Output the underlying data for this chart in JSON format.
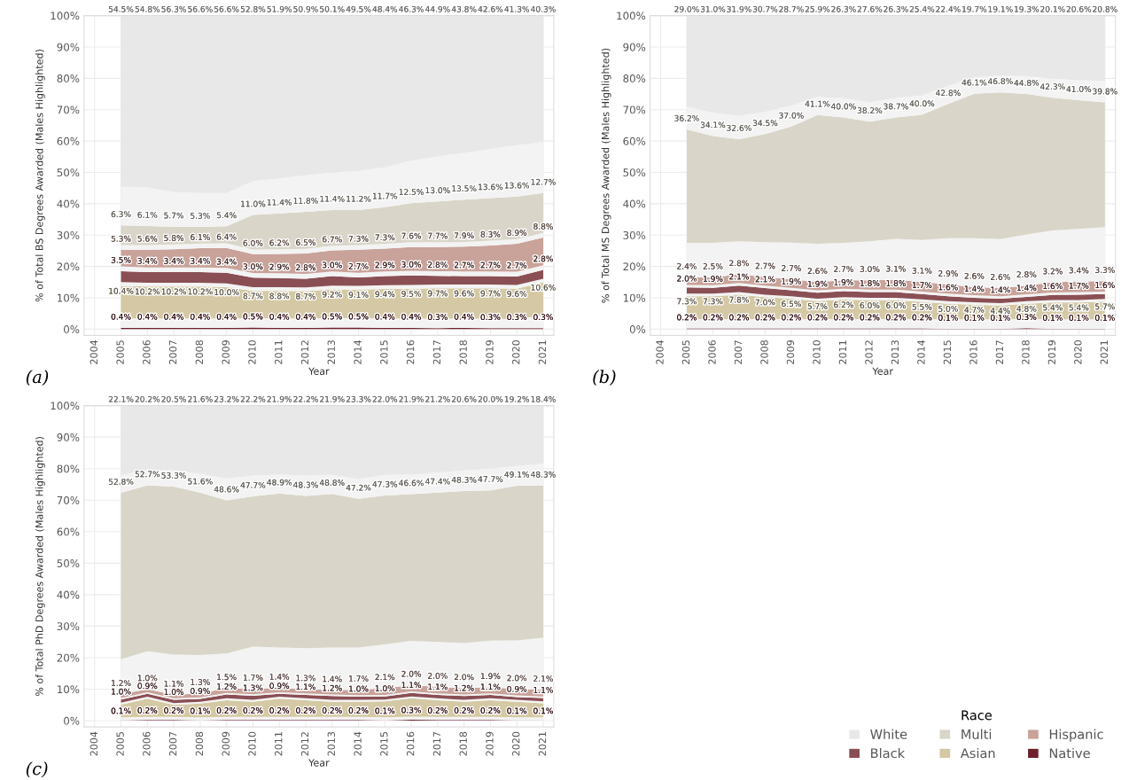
{
  "chart_data": [
    {
      "type": "area",
      "stacked": true,
      "grid": true,
      "ylabel": "% of Total BS Degrees Awarded (Males Highlighted)",
      "xlabel": "Year",
      "x": [
        2005,
        2006,
        2007,
        2008,
        2009,
        2010,
        2011,
        2012,
        2013,
        2014,
        2015,
        2016,
        2017,
        2018,
        2019,
        2020,
        2021
      ],
      "xlim": [
        2003.6,
        2021.4
      ],
      "xticks": [
        2004,
        2005,
        2006,
        2007,
        2008,
        2009,
        2010,
        2011,
        2012,
        2013,
        2014,
        2015,
        2016,
        2017,
        2018,
        2019,
        2020,
        2021
      ],
      "ylim": [
        -2,
        100
      ],
      "yticks": [
        {
          "value": 0,
          "label": "0%"
        },
        {
          "value": 10,
          "label": "10%"
        },
        {
          "value": 20,
          "label": "20%"
        },
        {
          "value": 30,
          "label": "30%"
        },
        {
          "value": 40,
          "label": "40%"
        },
        {
          "value": 50,
          "label": "50%"
        },
        {
          "value": 60,
          "label": "60%"
        },
        {
          "value": 70,
          "label": "70%"
        },
        {
          "value": 80,
          "label": "80%"
        },
        {
          "value": 90,
          "label": "90%"
        },
        {
          "value": 100,
          "label": "100%"
        }
      ],
      "annotations": [
        "(a)"
      ],
      "series": [
        {
          "color": "#6d1f2c",
          "values": [
            0.4,
            0.4,
            0.4,
            0.4,
            0.4,
            0.5,
            0.4,
            0.4,
            0.5,
            0.5,
            0.4,
            0.4,
            0.3,
            0.4,
            0.3,
            0.3,
            0.3
          ],
          "value_labels": [
            "0.4%",
            "0.4%",
            "0.4%",
            "0.4%",
            "0.4%",
            "0.5%",
            "0.4%",
            "0.4%",
            "0.5%",
            "0.5%",
            "0.4%",
            "0.4%",
            "0.3%",
            "0.4%",
            "0.3%",
            "0.3%",
            "0.3%"
          ]
        },
        {
          "color": "#f3f3f3",
          "values": [
            3.0,
            3.0,
            3.0,
            3.0,
            3.0,
            3.0,
            3.0,
            3.0,
            3.0,
            3.0,
            3.0,
            3.0,
            3.0,
            3.0,
            3.0,
            3.0,
            4.0
          ]
        },
        {
          "color": "#d4c9a4",
          "values": [
            10.4,
            10.2,
            10.2,
            10.2,
            10.0,
            8.7,
            8.8,
            8.7,
            9.2,
            9.1,
            9.4,
            9.5,
            9.7,
            9.6,
            9.7,
            9.6,
            10.6
          ],
          "value_labels": [
            "10.4%",
            "10.2%",
            "10.2%",
            "10.2%",
            "10.0%",
            "8.7%",
            "8.8%",
            "8.7%",
            "9.2%",
            "9.1%",
            "9.4%",
            "9.5%",
            "9.7%",
            "9.6%",
            "9.7%",
            "9.6%",
            "10.6%"
          ]
        },
        {
          "color": "#f3f3f3",
          "values": [
            1.2,
            1.2,
            1.2,
            1.2,
            1.2,
            1.2,
            1.2,
            1.2,
            1.2,
            1.2,
            1.2,
            1.2,
            1.2,
            1.2,
            1.2,
            1.2,
            1.2
          ]
        },
        {
          "color": "#8a4f54",
          "values": [
            3.5,
            3.4,
            3.4,
            3.4,
            3.4,
            3.0,
            2.9,
            2.8,
            3.0,
            2.7,
            2.9,
            3.0,
            2.8,
            2.7,
            2.7,
            2.7,
            2.8
          ],
          "value_labels": [
            "3.5%",
            "3.4%",
            "3.4%",
            "3.4%",
            "3.4%",
            "3.0%",
            "2.9%",
            "2.8%",
            "3.0%",
            "2.7%",
            "2.9%",
            "3.0%",
            "2.8%",
            "2.7%",
            "2.7%",
            "2.7%",
            "2.8%"
          ]
        },
        {
          "color": "#f3f3f3",
          "values": [
            1.5,
            1.5,
            1.5,
            1.5,
            1.5,
            1.5,
            1.5,
            1.5,
            1.5,
            1.5,
            1.5,
            1.5,
            1.5,
            1.5,
            1.5,
            1.5,
            1.5
          ]
        },
        {
          "color": "#c9a29a",
          "values": [
            5.3,
            5.6,
            5.8,
            6.1,
            6.4,
            6.0,
            6.2,
            6.5,
            6.7,
            7.3,
            7.3,
            7.6,
            7.7,
            7.9,
            8.3,
            8.9,
            8.8
          ],
          "value_labels": [
            "5.3%",
            "5.6%",
            "5.8%",
            "6.1%",
            "6.4%",
            "6.0%",
            "6.2%",
            "6.5%",
            "6.7%",
            "7.3%",
            "7.3%",
            "7.6%",
            "7.7%",
            "7.9%",
            "8.3%",
            "8.9%",
            "8.8%"
          ]
        },
        {
          "color": "#f3f3f3",
          "values": [
            1.5,
            1.5,
            1.5,
            1.5,
            1.5,
            1.5,
            1.5,
            1.5,
            1.5,
            1.5,
            1.5,
            1.5,
            1.5,
            1.5,
            1.5,
            1.5,
            1.5
          ]
        },
        {
          "color": "#d9d6c9",
          "values": [
            6.3,
            6.1,
            5.7,
            5.3,
            5.4,
            11.0,
            11.4,
            11.8,
            11.4,
            11.2,
            11.7,
            12.5,
            13.0,
            13.5,
            13.6,
            13.6,
            12.7
          ],
          "value_labels": [
            "6.3%",
            "6.1%",
            "5.7%",
            "5.3%",
            "5.4%",
            "11.0%",
            "11.4%",
            "11.8%",
            "11.4%",
            "11.2%",
            "11.7%",
            "12.5%",
            "13.0%",
            "13.5%",
            "13.6%",
            "13.6%",
            "12.7%"
          ]
        },
        {
          "color": "#f3f3f3",
          "values": [
            12.4,
            12.3,
            11.0,
            10.8,
            10.6,
            10.8,
            11.2,
            11.7,
            11.9,
            12.5,
            12.7,
            13.5,
            14.4,
            14.9,
            15.6,
            16.4,
            16.3
          ]
        },
        {
          "color": "#e8e8e8",
          "values": [
            54.5,
            54.8,
            56.3,
            56.6,
            56.6,
            52.8,
            51.9,
            50.9,
            50.1,
            49.5,
            48.4,
            46.3,
            44.9,
            43.8,
            42.6,
            41.3,
            40.3
          ],
          "value_labels": [
            "54.5%",
            "54.8%",
            "56.3%",
            "56.6%",
            "56.6%",
            "52.8%",
            "51.9%",
            "50.9%",
            "50.1%",
            "49.5%",
            "48.4%",
            "46.3%",
            "44.9%",
            "43.8%",
            "42.6%",
            "41.3%",
            "40.3%"
          ]
        }
      ]
    },
    {
      "type": "area",
      "stacked": true,
      "grid": true,
      "ylabel": "% of Total MS Degrees Awarded (Males Highlighted)",
      "xlabel": "Year",
      "x": [
        2005,
        2006,
        2007,
        2008,
        2009,
        2010,
        2011,
        2012,
        2013,
        2014,
        2015,
        2016,
        2017,
        2018,
        2019,
        2020,
        2021
      ],
      "xlim": [
        2003.6,
        2021.4
      ],
      "xticks": [
        2004,
        2005,
        2006,
        2007,
        2008,
        2009,
        2010,
        2011,
        2012,
        2013,
        2014,
        2015,
        2016,
        2017,
        2018,
        2019,
        2020,
        2021
      ],
      "ylim": [
        -2,
        100
      ],
      "yticks": [
        {
          "value": 0,
          "label": "0%"
        },
        {
          "value": 10,
          "label": "10%"
        },
        {
          "value": 20,
          "label": "20%"
        },
        {
          "value": 30,
          "label": "30%"
        },
        {
          "value": 40,
          "label": "40%"
        },
        {
          "value": 50,
          "label": "50%"
        },
        {
          "value": 60,
          "label": "60%"
        },
        {
          "value": 70,
          "label": "70%"
        },
        {
          "value": 80,
          "label": "80%"
        },
        {
          "value": 90,
          "label": "90%"
        },
        {
          "value": 100,
          "label": "100%"
        }
      ],
      "annotations": [
        "(b)"
      ],
      "series": [
        {
          "color": "#6d1f2c",
          "values": [
            0.2,
            0.2,
            0.2,
            0.2,
            0.2,
            0.2,
            0.2,
            0.2,
            0.2,
            0.2,
            0.1,
            0.1,
            0.1,
            0.3,
            0.1,
            0.1,
            0.1
          ],
          "value_labels": [
            "0.2%",
            "0.2%",
            "0.2%",
            "0.2%",
            "0.2%",
            "0.2%",
            "0.2%",
            "0.2%",
            "0.2%",
            "0.2%",
            "0.1%",
            "0.1%",
            "0.1%",
            "0.3%",
            "0.1%",
            "0.1%",
            "0.1%"
          ]
        },
        {
          "color": "#f3f3f3",
          "values": [
            3.0,
            3.0,
            3.0,
            3.0,
            3.0,
            3.0,
            3.0,
            3.0,
            3.0,
            3.0,
            3.0,
            3.0,
            3.0,
            3.0,
            3.0,
            3.0,
            3.0
          ]
        },
        {
          "color": "#d4c9a4",
          "values": [
            7.3,
            7.3,
            7.8,
            7.0,
            6.5,
            5.7,
            6.2,
            6.0,
            6.0,
            5.5,
            5.0,
            4.7,
            4.4,
            4.8,
            5.4,
            5.4,
            5.7
          ],
          "value_labels": [
            "7.3%",
            "7.3%",
            "7.8%",
            "7.0%",
            "6.5%",
            "5.7%",
            "6.2%",
            "6.0%",
            "6.0%",
            "5.5%",
            "5.0%",
            "4.7%",
            "4.4%",
            "4.8%",
            "5.4%",
            "5.4%",
            "5.7%"
          ]
        },
        {
          "color": "#f3f3f3",
          "values": [
            0.8,
            0.8,
            0.8,
            0.8,
            0.8,
            0.8,
            0.8,
            0.8,
            0.8,
            0.8,
            0.8,
            0.8,
            0.8,
            0.8,
            0.8,
            0.8,
            0.8
          ]
        },
        {
          "color": "#8a4f54",
          "values": [
            2.0,
            1.9,
            2.1,
            2.1,
            1.9,
            1.9,
            1.9,
            1.8,
            1.8,
            1.7,
            1.6,
            1.4,
            1.4,
            1.4,
            1.6,
            1.7,
            1.6
          ],
          "value_labels": [
            "2.0%",
            "1.9%",
            "2.1%",
            "2.1%",
            "1.9%",
            "1.9%",
            "1.9%",
            "1.8%",
            "1.8%",
            "1.7%",
            "1.6%",
            "1.4%",
            "1.4%",
            "1.4%",
            "1.6%",
            "1.7%",
            "1.6%"
          ]
        },
        {
          "color": "#f3f3f3",
          "values": [
            0.8,
            0.8,
            0.8,
            0.8,
            0.8,
            0.8,
            0.8,
            0.8,
            0.8,
            0.8,
            0.8,
            0.8,
            0.8,
            0.8,
            0.8,
            0.8,
            0.8
          ]
        },
        {
          "color": "#c9a29a",
          "values": [
            2.4,
            2.5,
            2.8,
            2.7,
            2.7,
            2.6,
            2.7,
            3.0,
            3.1,
            3.1,
            2.9,
            2.6,
            2.6,
            2.8,
            3.2,
            3.4,
            3.3
          ],
          "value_labels": [
            "2.4%",
            "2.5%",
            "2.8%",
            "2.7%",
            "2.7%",
            "2.6%",
            "2.7%",
            "3.0%",
            "3.1%",
            "3.1%",
            "2.9%",
            "2.6%",
            "2.6%",
            "2.8%",
            "3.2%",
            "3.4%",
            "3.3%"
          ]
        },
        {
          "color": "#f3f3f3",
          "values": [
            11.0,
            11.0,
            10.5,
            11.1,
            11.7,
            12.2,
            11.9,
            12.4,
            13.1,
            13.3,
            14.8,
            15.6,
            15.6,
            16.3,
            16.6,
            16.8,
            17.2
          ]
        },
        {
          "color": "#d9d6c9",
          "values": [
            36.2,
            34.1,
            32.6,
            34.5,
            37.0,
            41.1,
            40.0,
            38.2,
            38.7,
            40.0,
            42.8,
            46.1,
            46.8,
            44.8,
            42.3,
            41.0,
            39.8
          ],
          "value_labels": [
            "36.2%",
            "34.1%",
            "32.6%",
            "34.5%",
            "37.0%",
            "41.1%",
            "40.0%",
            "38.2%",
            "38.7%",
            "40.0%",
            "42.8%",
            "46.1%",
            "46.8%",
            "44.8%",
            "42.3%",
            "41.0%",
            "39.8%"
          ]
        },
        {
          "color": "#f3f3f3",
          "values": [
            7.3,
            7.4,
            7.5,
            7.1,
            6.7,
            5.8,
            6.2,
            6.2,
            6.2,
            6.2,
            5.8,
            5.2,
            5.4,
            5.7,
            6.1,
            6.4,
            6.9
          ]
        },
        {
          "color": "#e8e8e8",
          "values": [
            29.0,
            31.0,
            31.9,
            30.7,
            28.7,
            25.9,
            26.3,
            27.6,
            26.3,
            25.4,
            22.4,
            19.7,
            19.1,
            19.3,
            20.1,
            20.6,
            20.8
          ],
          "value_labels": [
            "29.0%",
            "31.0%",
            "31.9%",
            "30.7%",
            "28.7%",
            "25.9%",
            "26.3%",
            "27.6%",
            "26.3%",
            "25.4%",
            "22.4%",
            "19.7%",
            "19.1%",
            "19.3%",
            "20.1%",
            "20.6%",
            "20.8%"
          ]
        }
      ]
    },
    {
      "type": "area",
      "stacked": true,
      "grid": true,
      "ylabel": "% of Total PhD Degrees Awarded (Males Highlighted)",
      "xlabel": "Year",
      "x": [
        2005,
        2006,
        2007,
        2008,
        2009,
        2010,
        2011,
        2012,
        2013,
        2014,
        2015,
        2016,
        2017,
        2018,
        2019,
        2020,
        2021
      ],
      "xlim": [
        2003.6,
        2021.4
      ],
      "xticks": [
        2004,
        2005,
        2006,
        2007,
        2008,
        2009,
        2010,
        2011,
        2012,
        2013,
        2014,
        2015,
        2016,
        2017,
        2018,
        2019,
        2020,
        2021
      ],
      "ylim": [
        -2,
        100
      ],
      "yticks": [
        {
          "value": 0,
          "label": "0%"
        },
        {
          "value": 10,
          "label": "10%"
        },
        {
          "value": 20,
          "label": "20%"
        },
        {
          "value": 30,
          "label": "30%"
        },
        {
          "value": 40,
          "label": "40%"
        },
        {
          "value": 50,
          "label": "50%"
        },
        {
          "value": 60,
          "label": "60%"
        },
        {
          "value": 70,
          "label": "70%"
        },
        {
          "value": 80,
          "label": "80%"
        },
        {
          "value": 90,
          "label": "90%"
        },
        {
          "value": 100,
          "label": "100%"
        }
      ],
      "annotations": [
        "(c)"
      ],
      "legend": "bottom right",
      "legend_title": "Race",
      "series": [
        {
          "name": "Native",
          "color": "#6d1f2c",
          "values": [
            0.1,
            0.2,
            0.2,
            0.1,
            0.2,
            0.2,
            0.2,
            0.2,
            0.2,
            0.2,
            0.1,
            0.3,
            0.2,
            0.2,
            0.2,
            0.1,
            0.1
          ],
          "value_labels": [
            "0.1%",
            "0.2%",
            "0.2%",
            "0.1%",
            "0.2%",
            "0.2%",
            "0.2%",
            "0.2%",
            "0.2%",
            "0.2%",
            "0.1%",
            "0.3%",
            "0.2%",
            "0.2%",
            "0.2%",
            "0.1%",
            "0.1%"
          ]
        },
        {
          "color": "#f3f3f3",
          "values": [
            1.0,
            1.0,
            1.0,
            1.0,
            1.0,
            1.0,
            1.0,
            1.0,
            1.0,
            1.0,
            1.0,
            1.0,
            1.0,
            1.0,
            1.0,
            1.0,
            1.0
          ]
        },
        {
          "name": "Asian",
          "color": "#d4c9a4",
          "values": [
            4.0,
            5.8,
            3.8,
            4.3,
            5.3,
            4.8,
            5.8,
            5.3,
            4.8,
            4.8,
            5.0,
            5.8,
            5.3,
            4.8,
            5.3,
            4.9,
            4.4
          ]
        },
        {
          "color": "#f3f3f3",
          "values": [
            0.6,
            0.6,
            0.6,
            0.6,
            0.6,
            0.6,
            0.6,
            0.6,
            0.6,
            0.6,
            0.6,
            0.6,
            0.6,
            0.6,
            0.6,
            0.6,
            0.6
          ]
        },
        {
          "name": "Black",
          "color": "#8a4f54",
          "values": [
            1.0,
            0.9,
            1.0,
            0.9,
            1.2,
            1.3,
            0.9,
            1.1,
            1.2,
            1.0,
            1.0,
            1.1,
            1.1,
            1.2,
            1.1,
            0.9,
            1.1
          ],
          "value_labels": [
            "1.0%",
            "0.9%",
            "1.0%",
            "0.9%",
            "1.2%",
            "1.3%",
            "0.9%",
            "1.1%",
            "1.2%",
            "1.0%",
            "1.0%",
            "1.1%",
            "1.1%",
            "1.2%",
            "1.1%",
            "0.9%",
            "1.1%"
          ]
        },
        {
          "color": "#f3f3f3",
          "values": [
            0.5,
            0.5,
            0.5,
            0.5,
            0.5,
            0.5,
            0.5,
            0.5,
            0.5,
            0.5,
            0.5,
            0.5,
            0.5,
            0.5,
            0.5,
            0.5,
            0.5
          ]
        },
        {
          "name": "Hispanic",
          "color": "#c9a29a",
          "values": [
            1.2,
            1.0,
            1.1,
            1.3,
            1.5,
            1.7,
            1.4,
            1.3,
            1.4,
            1.7,
            2.1,
            2.0,
            2.0,
            2.0,
            1.9,
            2.0,
            2.1
          ],
          "value_labels": [
            "1.2%",
            "1.0%",
            "1.1%",
            "1.3%",
            "1.5%",
            "1.7%",
            "1.4%",
            "1.3%",
            "1.4%",
            "1.7%",
            "2.1%",
            "2.0%",
            "2.0%",
            "2.0%",
            "1.9%",
            "2.0%",
            "2.1%"
          ]
        },
        {
          "color": "#f3f3f3",
          "values": [
            11.1,
            12.0,
            12.8,
            12.1,
            11.0,
            13.4,
            12.8,
            13.0,
            13.5,
            13.4,
            13.9,
            14.0,
            14.3,
            14.3,
            14.8,
            15.5,
            16.5
          ]
        },
        {
          "name": "Multi",
          "color": "#d9d6c9",
          "values": [
            52.8,
            52.7,
            53.3,
            51.6,
            48.6,
            47.7,
            48.9,
            48.3,
            48.8,
            47.2,
            47.3,
            46.6,
            47.4,
            48.3,
            47.7,
            49.1,
            48.3
          ],
          "value_labels": [
            "52.8%",
            "52.7%",
            "53.3%",
            "51.6%",
            "48.6%",
            "47.7%",
            "48.9%",
            "48.3%",
            "48.8%",
            "47.2%",
            "47.3%",
            "46.6%",
            "47.4%",
            "48.3%",
            "47.7%",
            "49.1%",
            "48.3%"
          ]
        },
        {
          "color": "#f3f3f3",
          "values": [
            5.6,
            5.1,
            5.2,
            6.0,
            6.9,
            6.6,
            6.0,
            6.5,
            6.1,
            6.3,
            6.5,
            6.2,
            6.4,
            6.5,
            6.9,
            6.2,
            7.0
          ]
        },
        {
          "name": "White",
          "color": "#e8e8e8",
          "values": [
            22.1,
            20.2,
            20.5,
            21.6,
            23.2,
            22.2,
            21.9,
            22.2,
            21.9,
            23.3,
            22.0,
            21.9,
            21.2,
            20.6,
            20.0,
            19.2,
            18.4
          ],
          "value_labels": [
            "22.1%",
            "20.2%",
            "20.5%",
            "21.6%",
            "23.2%",
            "22.2%",
            "21.9%",
            "22.2%",
            "21.9%",
            "23.3%",
            "22.0%",
            "21.9%",
            "21.2%",
            "20.6%",
            "20.0%",
            "19.2%",
            "18.4%"
          ]
        }
      ]
    }
  ]
}
